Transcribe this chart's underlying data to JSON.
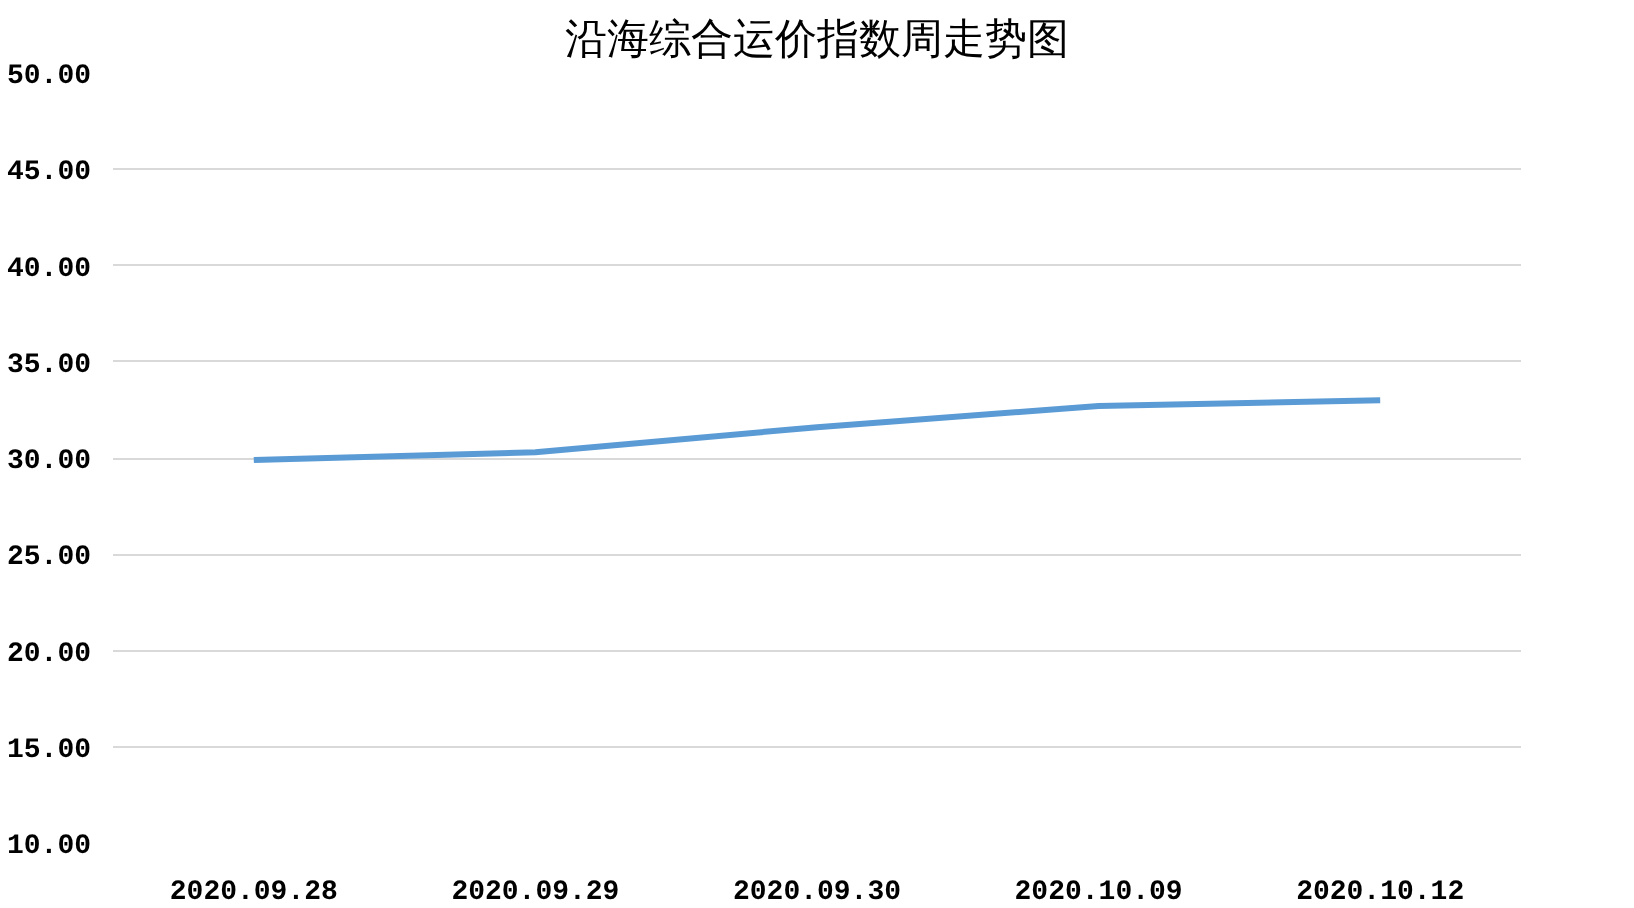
{
  "chart_data": {
    "type": "line",
    "title": "沿海综合运价指数周走势图",
    "categories": [
      "2020.09.28",
      "2020.09.29",
      "2020.09.30",
      "2020.10.09",
      "2020.10.12"
    ],
    "series": [
      {
        "color": "#5b9bd5",
        "values": [
          29.9,
          30.3,
          31.6,
          32.7,
          33.0
        ]
      }
    ],
    "ylim": [
      10,
      50
    ],
    "yticks": [
      {
        "value": 10,
        "label": "10.00"
      },
      {
        "value": 15,
        "label": "15.00"
      },
      {
        "value": 20,
        "label": "20.00"
      },
      {
        "value": 25,
        "label": "25.00"
      },
      {
        "value": 30,
        "label": "30.00"
      },
      {
        "value": 35,
        "label": "35.00"
      },
      {
        "value": 40,
        "label": "40.00"
      },
      {
        "value": 45,
        "label": "45.00"
      },
      {
        "value": 50,
        "label": "50.00"
      }
    ],
    "grid": "y",
    "marker": "none",
    "line_style": "solid"
  }
}
